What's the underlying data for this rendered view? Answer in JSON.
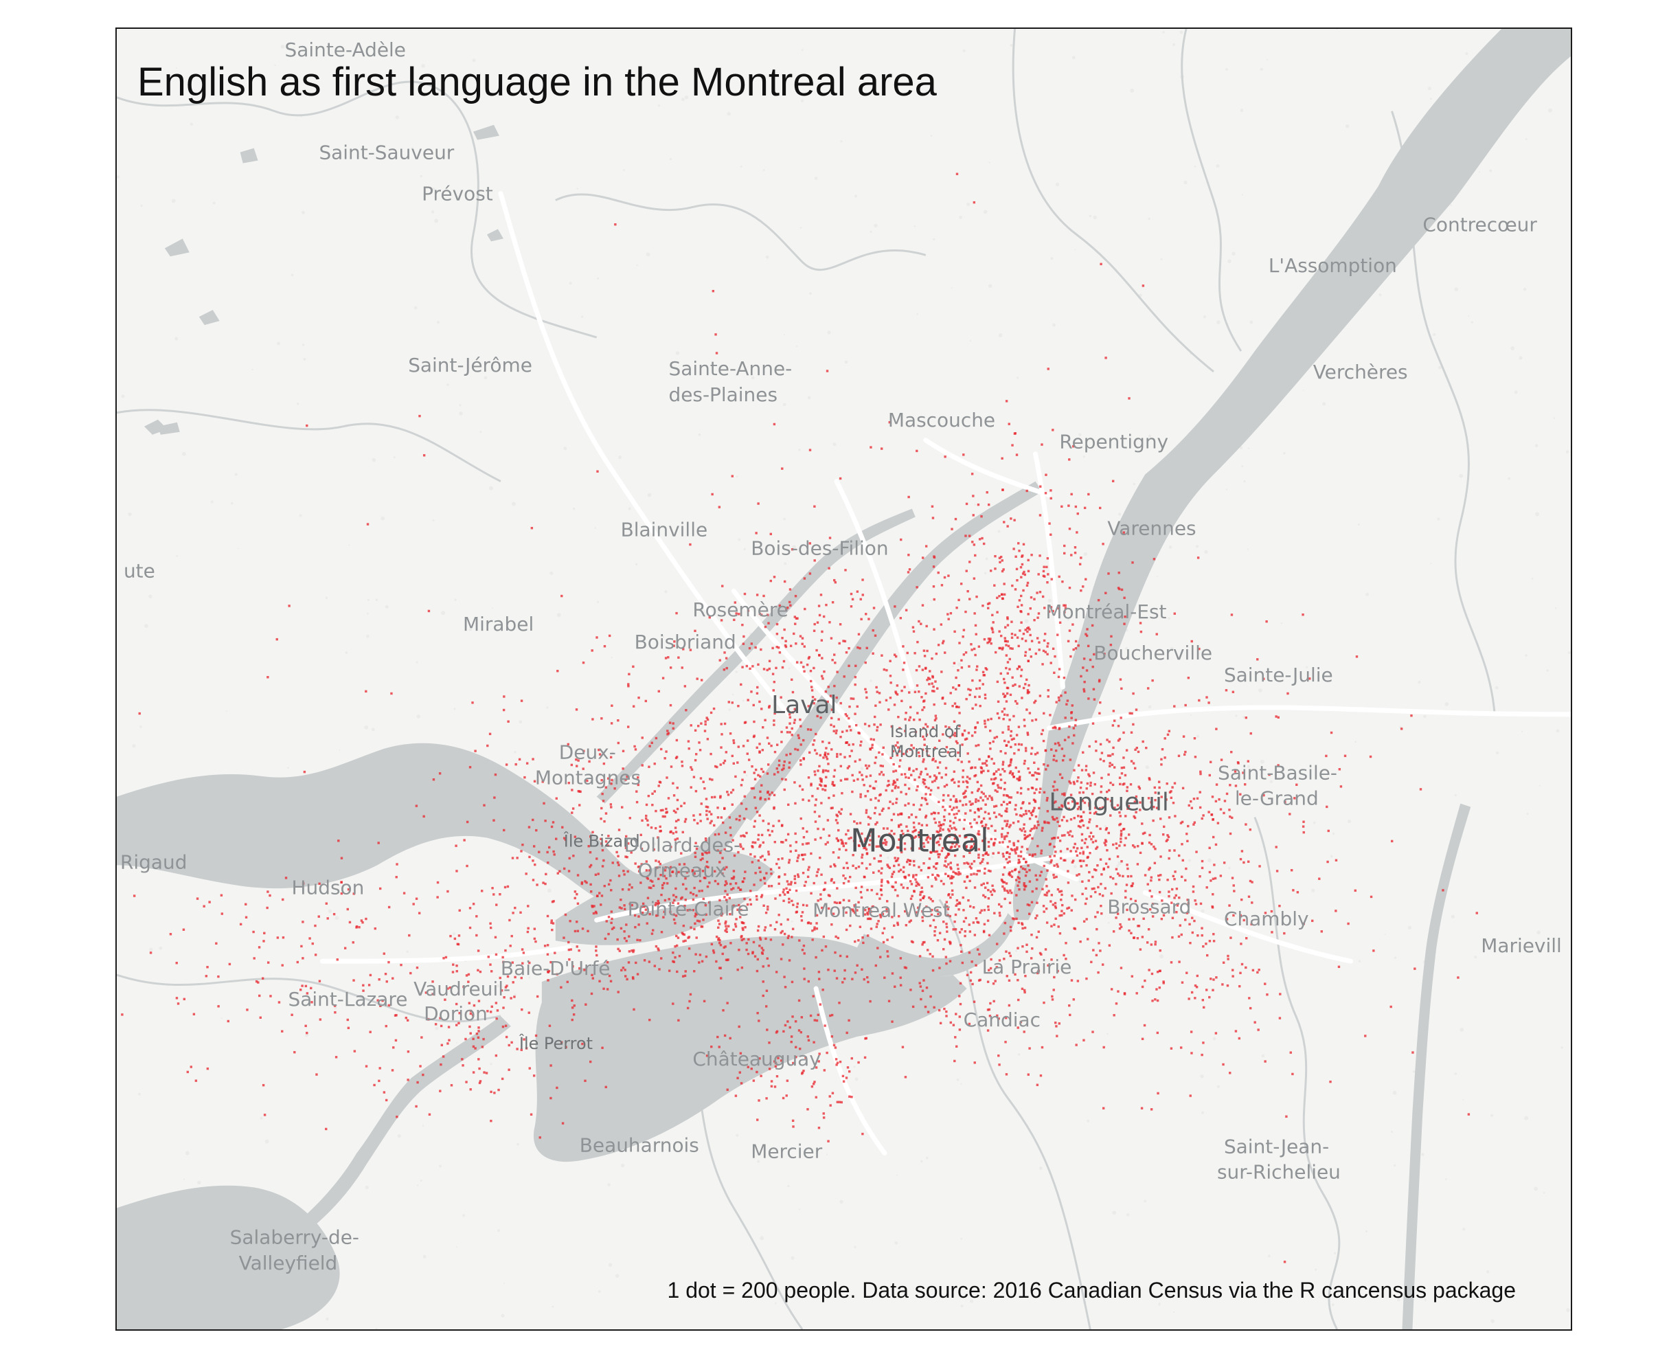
{
  "title": "English as first language in the Montreal area",
  "caption": "1 dot = 200 people. Data source: 2016 Canadian Census via the R cancensus package",
  "dot_color": "#e8242c",
  "water_color": "#c9cdce",
  "land_color": "#f4f4f3",
  "road_color": "#ffffff",
  "border_color": "#cfd2d3",
  "place_labels": [
    {
      "id": "sainte-adele",
      "text": "Sainte-Adèle",
      "tier": "minor"
    },
    {
      "id": "saint-sauveur",
      "text": "Saint-Sauveur",
      "tier": "minor"
    },
    {
      "id": "prevost",
      "text": "Prévost",
      "tier": "minor"
    },
    {
      "id": "contrecoeur",
      "text": "Contrecœur",
      "tier": "minor"
    },
    {
      "id": "lassomption",
      "text": "L'Assomption",
      "tier": "minor"
    },
    {
      "id": "saint-jerome",
      "text": "Saint-Jérôme",
      "tier": "minor"
    },
    {
      "id": "sainte-anne-1",
      "text": "Sainte-Anne-",
      "tier": "minor"
    },
    {
      "id": "sainte-anne-2",
      "text": "des-Plaines",
      "tier": "minor"
    },
    {
      "id": "vercheres",
      "text": "Verchères",
      "tier": "minor"
    },
    {
      "id": "mascouche",
      "text": "Mascouche",
      "tier": "minor"
    },
    {
      "id": "repentigny",
      "text": "Repentigny",
      "tier": "minor"
    },
    {
      "id": "varennes",
      "text": "Varennes",
      "tier": "minor"
    },
    {
      "id": "blainville",
      "text": "Blainville",
      "tier": "minor"
    },
    {
      "id": "bois-des-filion",
      "text": "Bois-des-Filion",
      "tier": "minor"
    },
    {
      "id": "ute",
      "text": "ute",
      "tier": "minor"
    },
    {
      "id": "mirabel",
      "text": "Mirabel",
      "tier": "minor"
    },
    {
      "id": "rosemere",
      "text": "Rosemère",
      "tier": "minor"
    },
    {
      "id": "montreal-est",
      "text": "Montréal-Est",
      "tier": "minor"
    },
    {
      "id": "boisbriand",
      "text": "Boisbriand",
      "tier": "minor"
    },
    {
      "id": "boucherville",
      "text": "Boucherville",
      "tier": "minor"
    },
    {
      "id": "sainte-julie",
      "text": "Sainte-Julie",
      "tier": "minor"
    },
    {
      "id": "laval",
      "text": "Laval",
      "tier": "major"
    },
    {
      "id": "island-1",
      "text": "Island of",
      "tier": "small"
    },
    {
      "id": "island-2",
      "text": "Montreal",
      "tier": "small"
    },
    {
      "id": "deux-1",
      "text": "Deux-",
      "tier": "minor"
    },
    {
      "id": "deux-2",
      "text": "Montagnes",
      "tier": "minor"
    },
    {
      "id": "saint-basile-1",
      "text": "Saint-Basile-",
      "tier": "minor"
    },
    {
      "id": "saint-basile-2",
      "text": "le-Grand",
      "tier": "minor"
    },
    {
      "id": "longueuil",
      "text": "Longueuil",
      "tier": "major"
    },
    {
      "id": "montreal",
      "text": "Montreal",
      "tier": "big"
    },
    {
      "id": "rigaud",
      "text": "Rigaud",
      "tier": "minor"
    },
    {
      "id": "ile-bizard",
      "text": "Île Bizard",
      "tier": "small"
    },
    {
      "id": "dollard-1",
      "text": "Dollard-des-",
      "tier": "minor"
    },
    {
      "id": "dollard-2",
      "text": "Ormeaux",
      "tier": "minor"
    },
    {
      "id": "hudson",
      "text": "Hudson",
      "tier": "minor"
    },
    {
      "id": "pointe-claire",
      "text": "Pointe-Claire",
      "tier": "minor"
    },
    {
      "id": "montreal-west",
      "text": "Montreal West",
      "tier": "minor"
    },
    {
      "id": "brossard",
      "text": "Brossard",
      "tier": "minor"
    },
    {
      "id": "chambly",
      "text": "Chambly",
      "tier": "minor"
    },
    {
      "id": "marieville",
      "text": "Marievill",
      "tier": "minor"
    },
    {
      "id": "baie-durfe",
      "text": "Baie-D'Urfé",
      "tier": "minor"
    },
    {
      "id": "la-prairie",
      "text": "La Prairie",
      "tier": "minor"
    },
    {
      "id": "vaudreuil-1",
      "text": "Vaudreuil-",
      "tier": "minor"
    },
    {
      "id": "vaudreuil-2",
      "text": "Dorion",
      "tier": "minor"
    },
    {
      "id": "saint-lazare",
      "text": "Saint-Lazare",
      "tier": "minor"
    },
    {
      "id": "candiac",
      "text": "Candiac",
      "tier": "minor"
    },
    {
      "id": "ile-perrot",
      "text": "Île Perrot",
      "tier": "small"
    },
    {
      "id": "chateauguay",
      "text": "Châteauguay",
      "tier": "minor"
    },
    {
      "id": "beauharnois",
      "text": "Beauharnois",
      "tier": "minor"
    },
    {
      "id": "mercier",
      "text": "Mercier",
      "tier": "minor"
    },
    {
      "id": "saint-jean-1",
      "text": "Saint-Jean-",
      "tier": "minor"
    },
    {
      "id": "saint-jean-2",
      "text": "sur-Richelieu",
      "tier": "minor"
    },
    {
      "id": "salaberry-1",
      "text": "Salaberry-de-",
      "tier": "minor"
    },
    {
      "id": "salaberry-2",
      "text": "Valleyfield",
      "tier": "minor"
    }
  ]
}
